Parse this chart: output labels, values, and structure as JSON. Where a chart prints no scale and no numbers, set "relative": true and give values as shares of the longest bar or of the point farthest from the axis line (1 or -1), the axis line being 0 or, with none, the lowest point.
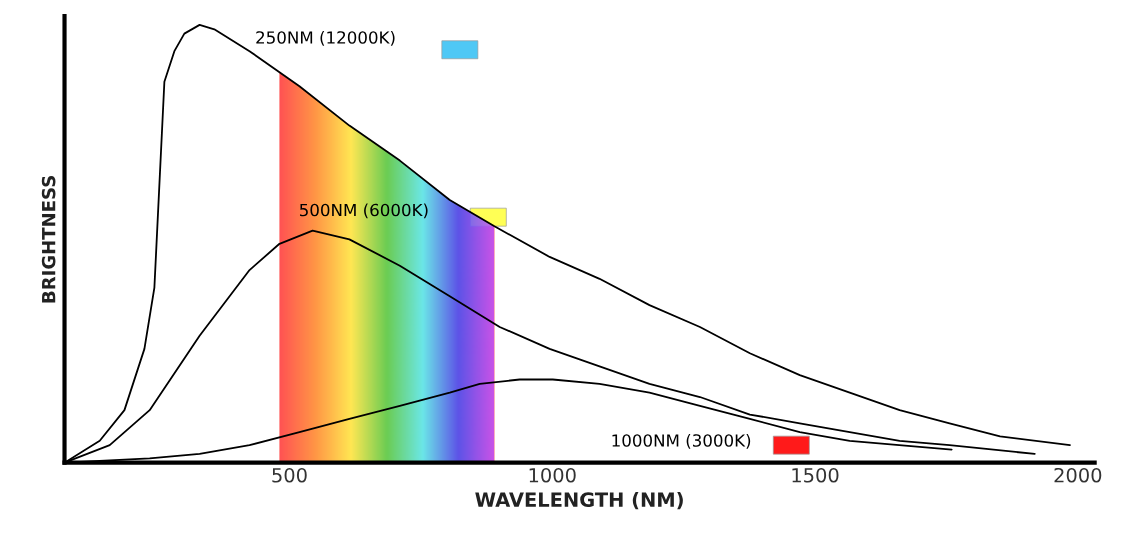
{
  "chart_data": {
    "type": "line",
    "xlabel": "WAVELENGTH (NM)",
    "ylabel": "BRIGHTNESS",
    "relative": true,
    "xlim": [
      72,
      2032
    ],
    "xticks": [
      500,
      1000,
      1500,
      2000
    ],
    "grid": false,
    "legend": false,
    "marker": "none",
    "line_style": "solid",
    "series": [
      {
        "name": "250NM (12000K)",
        "color": "#000000",
        "x": [
          72,
          139,
          186,
          224,
          243,
          262,
          281,
          300,
          329,
          357,
          424,
          519,
          614,
          710,
          805,
          890,
          995,
          1090,
          1185,
          1281,
          1376,
          1471,
          1566,
          1661,
          1756,
          1852,
          1985
        ],
        "values": [
          0,
          0.05,
          0.12,
          0.26,
          0.4,
          0.87,
          0.94,
          0.98,
          1,
          0.99,
          0.94,
          0.86,
          0.77,
          0.69,
          0.6,
          0.54,
          0.47,
          0.42,
          0.36,
          0.31,
          0.25,
          0.2,
          0.16,
          0.12,
          0.09,
          0.06,
          0.04
        ]
      },
      {
        "name": "500NM (6000K)",
        "color": "#000000",
        "x": [
          72,
          158,
          234,
          329,
          424,
          481,
          544,
          614,
          710,
          805,
          900,
          995,
          1090,
          1185,
          1281,
          1376,
          1471,
          1566,
          1661,
          1756,
          1918
        ],
        "values": [
          0,
          0.04,
          0.12,
          0.29,
          0.44,
          0.5,
          0.53,
          0.51,
          0.45,
          0.38,
          0.31,
          0.26,
          0.22,
          0.18,
          0.15,
          0.11,
          0.09,
          0.07,
          0.05,
          0.04,
          0.02
        ]
      },
      {
        "name": "1000NM (3000K)",
        "color": "#000000",
        "x": [
          72,
          234,
          329,
          424,
          519,
          614,
          710,
          805,
          862,
          938,
          1001,
          1090,
          1185,
          1281,
          1376,
          1471,
          1566,
          1760
        ],
        "values": [
          0,
          0.01,
          0.02,
          0.04,
          0.07,
          0.1,
          0.13,
          0.16,
          0.18,
          0.19,
          0.19,
          0.18,
          0.16,
          0.13,
          0.1,
          0.07,
          0.05,
          0.03
        ]
      }
    ],
    "bands": [
      {
        "axis": "x",
        "from": 481,
        "to": 890,
        "color": "#ff6060"
      }
    ]
  }
}
